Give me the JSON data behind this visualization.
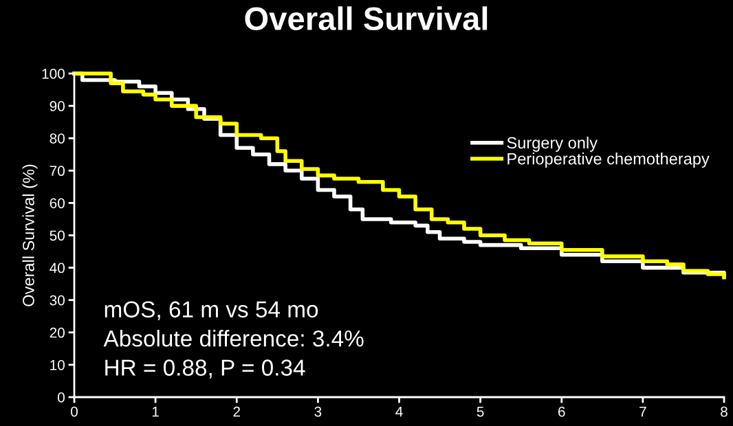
{
  "chart_data": {
    "type": "step",
    "title": "Overall Survival",
    "ylabel": "Overall Survival (%)",
    "xlim": [
      0,
      8
    ],
    "ylim": [
      0,
      100
    ],
    "xticks": [
      0,
      1,
      2,
      3,
      4,
      5,
      6,
      7,
      8
    ],
    "yticks": [
      0,
      10,
      20,
      30,
      40,
      50,
      60,
      70,
      80,
      90,
      100
    ],
    "grid": false,
    "legend": "top right",
    "marker": "none",
    "line_style": "solid",
    "series": [
      {
        "name": "Surgery only",
        "color": "#ffffff",
        "x": [
          0,
          0.1,
          0.3,
          0.5,
          0.8,
          1.0,
          1.2,
          1.4,
          1.6,
          1.8,
          2.0,
          2.2,
          2.4,
          2.6,
          2.8,
          3.0,
          3.2,
          3.4,
          3.55,
          3.9,
          4.2,
          4.35,
          4.5,
          4.8,
          5.0,
          5.5,
          6.0,
          6.5,
          7.0,
          7.5,
          8.0
        ],
        "values": [
          100,
          98,
          98,
          97.5,
          96,
          94,
          92,
          89,
          86,
          81,
          77,
          75,
          72,
          70,
          67.5,
          64,
          62,
          58,
          55,
          54,
          53,
          51,
          49,
          48,
          47,
          46,
          44,
          42,
          40,
          38.5,
          37.5
        ]
      },
      {
        "name": "Perioperative chemotherapy",
        "color": "#ffff00",
        "x": [
          0,
          0.3,
          0.45,
          0.6,
          0.85,
          1.0,
          1.2,
          1.5,
          1.8,
          2.0,
          2.3,
          2.5,
          2.6,
          2.8,
          3.0,
          3.2,
          3.5,
          3.8,
          4.0,
          4.2,
          4.4,
          4.6,
          4.8,
          5.0,
          5.3,
          5.6,
          6.0,
          6.5,
          7.0,
          7.3,
          7.5,
          7.8,
          8.0
        ],
        "values": [
          100,
          100,
          97,
          94.5,
          93.5,
          92,
          90,
          86.5,
          84.5,
          81,
          80,
          76,
          73,
          70.5,
          68.5,
          67.5,
          66.5,
          64,
          62,
          58,
          55,
          54,
          52,
          50,
          48.5,
          47.5,
          45.5,
          43.5,
          42,
          41,
          39,
          38,
          37
        ]
      }
    ],
    "annotations": [
      "mOS, 61 m vs 54 mo",
      "Absolute difference: 3.4%",
      "HR = 0.88, P = 0.34"
    ]
  }
}
